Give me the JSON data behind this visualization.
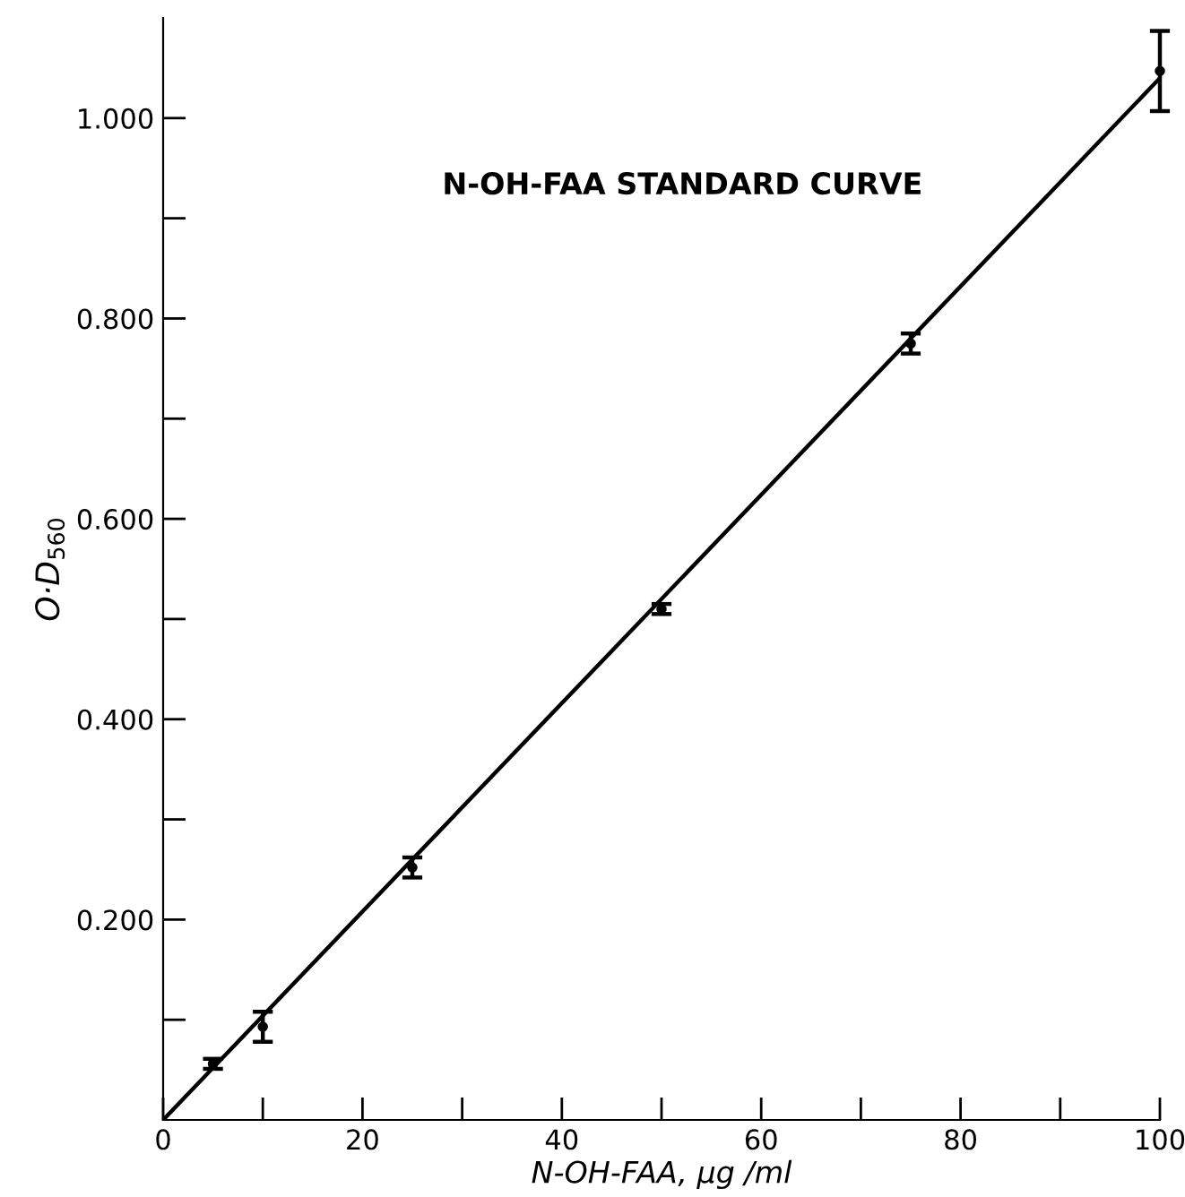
{
  "chart_data": {
    "type": "scatter",
    "title": "N-OH-FAA STANDARD CURVE",
    "xlabel": "N-OH-FAA, μg /ml",
    "ylabel": "O·D$_{560}$",
    "series": [
      {
        "color": "#000000",
        "marker": "circle",
        "x": [
          5,
          10,
          25,
          50,
          75,
          100
        ],
        "values": [
          0.056,
          0.093,
          0.252,
          0.51,
          0.775,
          1.047
        ],
        "errors": [
          0.005,
          0.015,
          0.01,
          0.005,
          0.01,
          0.04
        ]
      },
      {
        "type": "line",
        "color": "#000000",
        "x": [
          0,
          100
        ],
        "values": [
          0,
          1.04
        ],
        "line_style": "solid",
        "marker": "none"
      }
    ],
    "xlim": [
      0,
      100
    ],
    "ylim": [
      0,
      1.1
    ],
    "xticks": [
      0,
      {
        "value": 10,
        "label": null
      },
      20,
      {
        "value": 30,
        "label": null
      },
      40,
      {
        "value": 50,
        "label": null
      },
      60,
      {
        "value": 70,
        "label": null
      },
      80,
      {
        "value": 90,
        "label": null
      },
      100
    ],
    "yticks": [
      {
        "value": 0.1,
        "label": null
      },
      {
        "value": 0.2,
        "label": "0.200"
      },
      {
        "value": 0.3,
        "label": null
      },
      {
        "value": 0.4,
        "label": "0.400"
      },
      {
        "value": 0.5,
        "label": null
      },
      {
        "value": 0.6,
        "label": "0.600"
      },
      {
        "value": 0.7,
        "label": null
      },
      {
        "value": 0.8,
        "label": "0.800"
      },
      {
        "value": 0.9,
        "label": null
      },
      {
        "value": 1.0,
        "label": "1.000"
      }
    ],
    "grid": false,
    "legend": false
  }
}
